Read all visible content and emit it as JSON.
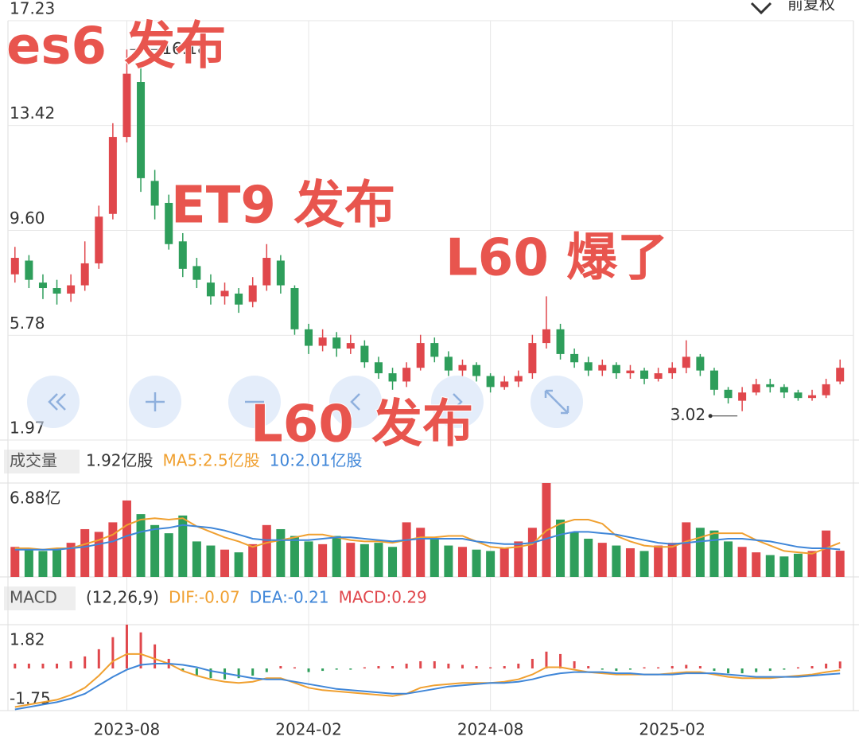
{
  "header": {
    "adjust": "前复权"
  },
  "chart_data": [
    {
      "type": "candlestick",
      "categories": [
        null,
        null,
        null,
        null,
        null,
        null,
        null,
        null,
        "2023-08",
        null,
        null,
        null,
        null,
        null,
        null,
        null,
        null,
        null,
        null,
        null,
        null,
        "2024-02",
        null,
        null,
        null,
        null,
        null,
        null,
        null,
        null,
        null,
        null,
        null,
        null,
        "2024-08",
        null,
        null,
        null,
        null,
        null,
        null,
        null,
        null,
        null,
        null,
        null,
        null,
        "2025-02",
        null,
        null,
        null,
        null,
        null,
        null,
        null,
        null,
        null,
        null,
        null,
        null
      ],
      "open": [
        8.0,
        8.5,
        7.7,
        7.5,
        7.3,
        7.6,
        8.4,
        10.2,
        13.0,
        15.0,
        11.4,
        10.6,
        9.2,
        8.3,
        7.7,
        7.2,
        7.3,
        7.0,
        7.6,
        8.5,
        7.5,
        6.0,
        5.4,
        5.7,
        5.3,
        5.4,
        4.8,
        4.4,
        4.1,
        4.6,
        5.5,
        5.0,
        4.5,
        4.7,
        4.3,
        3.9,
        4.1,
        4.4,
        5.5,
        6.0,
        5.1,
        4.8,
        4.5,
        4.7,
        4.4,
        4.5,
        4.2,
        4.4,
        4.6,
        5.0,
        4.5,
        3.8,
        3.4,
        3.7,
        4.0,
        3.9,
        3.7,
        3.5,
        3.6,
        4.1
      ],
      "high": [
        9.0,
        8.7,
        8.0,
        7.8,
        8.0,
        9.2,
        10.5,
        13.5,
        16.18,
        15.5,
        11.8,
        10.9,
        9.5,
        8.6,
        8.0,
        7.7,
        7.5,
        7.9,
        9.1,
        8.7,
        7.6,
        6.2,
        6.0,
        5.9,
        5.8,
        5.6,
        5.0,
        4.6,
        4.8,
        5.8,
        5.7,
        5.2,
        4.9,
        4.8,
        4.4,
        4.3,
        4.5,
        5.8,
        7.2,
        6.2,
        5.3,
        5.0,
        4.9,
        4.8,
        4.7,
        4.6,
        4.6,
        4.8,
        5.6,
        5.1,
        4.6,
        3.9,
        3.9,
        4.2,
        4.2,
        4.0,
        3.8,
        3.8,
        4.2,
        4.9
      ],
      "low": [
        7.7,
        7.5,
        7.1,
        6.9,
        7.0,
        7.4,
        8.2,
        10.0,
        12.8,
        11.0,
        10.0,
        8.9,
        7.9,
        7.5,
        6.9,
        6.9,
        6.6,
        6.8,
        7.4,
        7.3,
        5.8,
        5.1,
        5.2,
        5.0,
        5.1,
        4.6,
        4.2,
        3.8,
        3.9,
        4.5,
        4.8,
        4.3,
        4.3,
        4.1,
        3.7,
        3.8,
        3.9,
        4.2,
        5.3,
        4.9,
        4.6,
        4.3,
        4.3,
        4.2,
        4.2,
        4.0,
        4.1,
        4.2,
        4.4,
        4.3,
        3.6,
        3.3,
        3.02,
        3.6,
        3.7,
        3.5,
        3.4,
        3.4,
        3.5,
        4.0
      ],
      "close": [
        8.6,
        7.8,
        7.5,
        7.3,
        7.6,
        8.4,
        10.1,
        13.0,
        15.3,
        11.5,
        10.5,
        9.1,
        8.2,
        7.8,
        7.2,
        7.4,
        6.9,
        7.6,
        8.6,
        7.6,
        6.0,
        5.4,
        5.7,
        5.3,
        5.5,
        4.8,
        4.4,
        4.1,
        4.6,
        5.5,
        5.0,
        4.5,
        4.7,
        4.3,
        3.9,
        4.1,
        4.3,
        5.5,
        6.0,
        5.1,
        4.8,
        4.5,
        4.7,
        4.4,
        4.5,
        4.2,
        4.4,
        4.6,
        5.0,
        4.5,
        3.8,
        3.5,
        3.7,
        4.0,
        3.9,
        3.7,
        3.5,
        3.6,
        4.0,
        4.6
      ],
      "up_color": "#e0474c",
      "down_color": "#2e9e5b",
      "ylim": [
        1.97,
        17.23
      ],
      "yticks": [
        1.97,
        5.78,
        {
          "value": 9.6,
          "label": "9.60"
        },
        13.42,
        17.23
      ],
      "grid": true,
      "annotations": [
        "es6 发布",
        "ET9 发布",
        "L60 爆了",
        "L60 发布"
      ]
    },
    {
      "type": "bar",
      "name": "成交量",
      "current": "1.92亿股",
      "values": [
        2.2,
        2.0,
        1.9,
        2.1,
        2.5,
        3.5,
        3.3,
        4.0,
        5.6,
        4.6,
        3.8,
        3.2,
        4.5,
        2.6,
        2.3,
        2.0,
        1.8,
        2.4,
        3.8,
        3.5,
        3.0,
        2.6,
        2.4,
        3.0,
        2.5,
        2.4,
        2.5,
        2.2,
        4.0,
        3.6,
        2.8,
        2.3,
        2.2,
        2.0,
        1.9,
        2.1,
        2.6,
        3.6,
        6.88,
        4.2,
        3.3,
        2.8,
        2.5,
        2.3,
        2.1,
        1.9,
        2.3,
        2.5,
        4.0,
        3.6,
        3.4,
        2.6,
        2.2,
        1.8,
        1.6,
        1.5,
        1.7,
        1.9,
        3.4,
        1.92
      ],
      "series": [
        {
          "name": "MA5:2.5亿股",
          "color": "#f0a030",
          "values": [
            2.1,
            2.1,
            2.0,
            2.1,
            2.1,
            2.4,
            2.7,
            3.1,
            3.8,
            4.2,
            4.3,
            4.2,
            4.3,
            3.7,
            3.3,
            2.9,
            2.6,
            2.2,
            2.5,
            2.7,
            2.9,
            3.1,
            3.1,
            2.9,
            2.7,
            2.6,
            2.6,
            2.5,
            2.7,
            2.9,
            2.9,
            3.0,
            3.0,
            2.6,
            2.2,
            2.1,
            2.2,
            2.4,
            3.4,
            3.9,
            4.2,
            4.2,
            3.9,
            3.0,
            2.6,
            2.3,
            2.2,
            2.2,
            2.6,
            2.9,
            3.2,
            3.2,
            3.2,
            2.7,
            2.3,
            1.9,
            1.8,
            1.7,
            2.1,
            2.5
          ]
        },
        {
          "name": "10:2.01亿股",
          "color": "#3f86d8",
          "values": [
            2.0,
            2.0,
            2.0,
            2.0,
            2.1,
            2.2,
            2.4,
            2.6,
            3.0,
            3.3,
            3.5,
            3.6,
            3.8,
            3.7,
            3.6,
            3.4,
            3.1,
            2.8,
            2.7,
            2.7,
            2.7,
            2.7,
            2.8,
            2.9,
            2.9,
            2.8,
            2.7,
            2.6,
            2.7,
            2.8,
            2.8,
            2.8,
            2.8,
            2.6,
            2.5,
            2.4,
            2.4,
            2.5,
            2.8,
            3.1,
            3.3,
            3.3,
            3.2,
            3.1,
            2.9,
            2.7,
            2.5,
            2.4,
            2.5,
            2.6,
            2.7,
            2.8,
            2.8,
            2.7,
            2.6,
            2.4,
            2.2,
            2.1,
            2.1,
            2.01
          ]
        }
      ],
      "ylim": [
        0,
        6.88
      ],
      "yticks": [
        {
          "value": 6.88,
          "label": "6.88亿"
        }
      ]
    },
    {
      "type": "bar",
      "name": "MACD",
      "params": "(12,26,9)",
      "value_name": "MACD:0.29",
      "up_color": "#e0474c",
      "down_color": "#2e9e5b",
      "values": [
        0.2,
        0.2,
        0.2,
        0.2,
        0.3,
        0.5,
        0.8,
        1.3,
        1.82,
        1.5,
        1.0,
        0.4,
        -0.1,
        -0.3,
        -0.4,
        -0.45,
        -0.4,
        -0.3,
        -0.15,
        0.1,
        0.05,
        -0.15,
        -0.1,
        -0.05,
        -0.05,
        0.05,
        0.1,
        0.1,
        0.2,
        0.3,
        0.3,
        0.2,
        0.15,
        0.1,
        0.05,
        0.1,
        0.2,
        0.4,
        0.7,
        0.6,
        0.3,
        0.1,
        -0.05,
        -0.1,
        -0.05,
        0.05,
        0.05,
        0.1,
        0.15,
        0.1,
        -0.1,
        -0.2,
        -0.2,
        -0.15,
        -0.1,
        -0.05,
        0.05,
        0.1,
        0.2,
        0.29
      ],
      "series": [
        {
          "name": "DIF:-0.07",
          "color": "#f0a030",
          "values": [
            -1.6,
            -1.5,
            -1.4,
            -1.3,
            -1.1,
            -0.8,
            -0.3,
            0.3,
            0.6,
            0.6,
            0.4,
            0.2,
            -0.1,
            -0.3,
            -0.45,
            -0.55,
            -0.6,
            -0.55,
            -0.4,
            -0.4,
            -0.6,
            -0.8,
            -0.9,
            -0.95,
            -1.0,
            -1.05,
            -1.1,
            -1.15,
            -1.05,
            -0.8,
            -0.7,
            -0.65,
            -0.6,
            -0.6,
            -0.6,
            -0.55,
            -0.45,
            -0.25,
            0.05,
            0.05,
            -0.05,
            -0.15,
            -0.2,
            -0.25,
            -0.25,
            -0.25,
            -0.25,
            -0.2,
            -0.15,
            -0.15,
            -0.25,
            -0.35,
            -0.4,
            -0.4,
            -0.4,
            -0.35,
            -0.3,
            -0.25,
            -0.15,
            -0.07
          ]
        },
        {
          "name": "DEA:-0.21",
          "color": "#3f86d8",
          "values": [
            -1.7,
            -1.6,
            -1.5,
            -1.4,
            -1.25,
            -1.05,
            -0.7,
            -0.35,
            -0.05,
            0.15,
            0.2,
            0.2,
            0.15,
            0.05,
            -0.1,
            -0.2,
            -0.3,
            -0.4,
            -0.45,
            -0.45,
            -0.55,
            -0.65,
            -0.75,
            -0.85,
            -0.9,
            -0.95,
            -1.0,
            -1.05,
            -1.05,
            -0.95,
            -0.85,
            -0.75,
            -0.7,
            -0.65,
            -0.6,
            -0.6,
            -0.55,
            -0.45,
            -0.3,
            -0.2,
            -0.15,
            -0.15,
            -0.15,
            -0.2,
            -0.2,
            -0.25,
            -0.25,
            -0.25,
            -0.2,
            -0.2,
            -0.2,
            -0.25,
            -0.3,
            -0.35,
            -0.35,
            -0.35,
            -0.35,
            -0.3,
            -0.25,
            -0.21
          ]
        }
      ],
      "ylim": [
        -1.75,
        1.82
      ],
      "yticks": [
        1.82,
        -1.75
      ]
    }
  ]
}
